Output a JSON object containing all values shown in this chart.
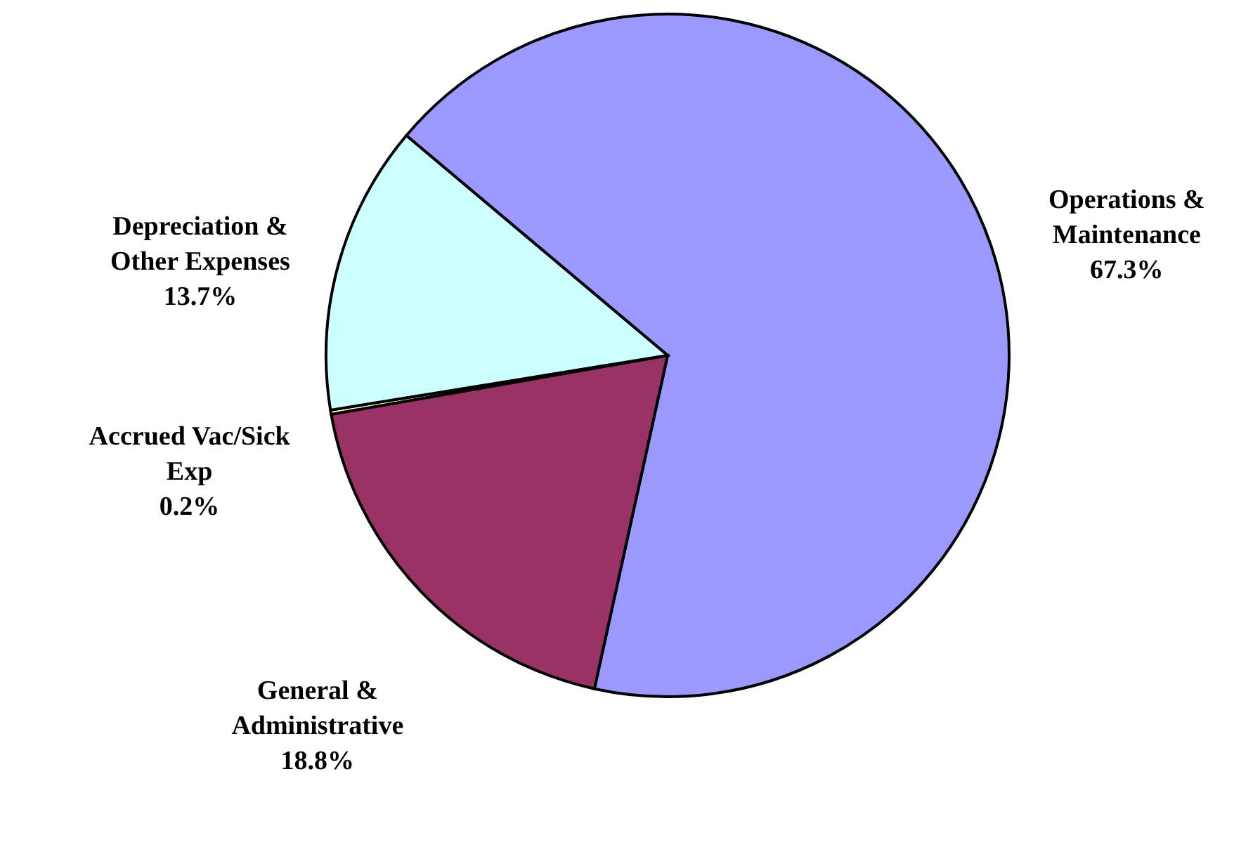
{
  "chart_data": {
    "type": "pie",
    "categories": [
      "Operations &\nMaintenance",
      "General &\nAdministrative",
      "Accrued Vac/Sick\nExp",
      "Depreciation &\nOther Expenses"
    ],
    "values": [
      67.3,
      18.8,
      0.2,
      13.7
    ],
    "value_labels": [
      "67.3%",
      "18.8%",
      "0.2%",
      "13.7%"
    ],
    "colors": [
      "#9999ff",
      "#993366",
      "#ffffcc",
      "#ccffff"
    ]
  }
}
